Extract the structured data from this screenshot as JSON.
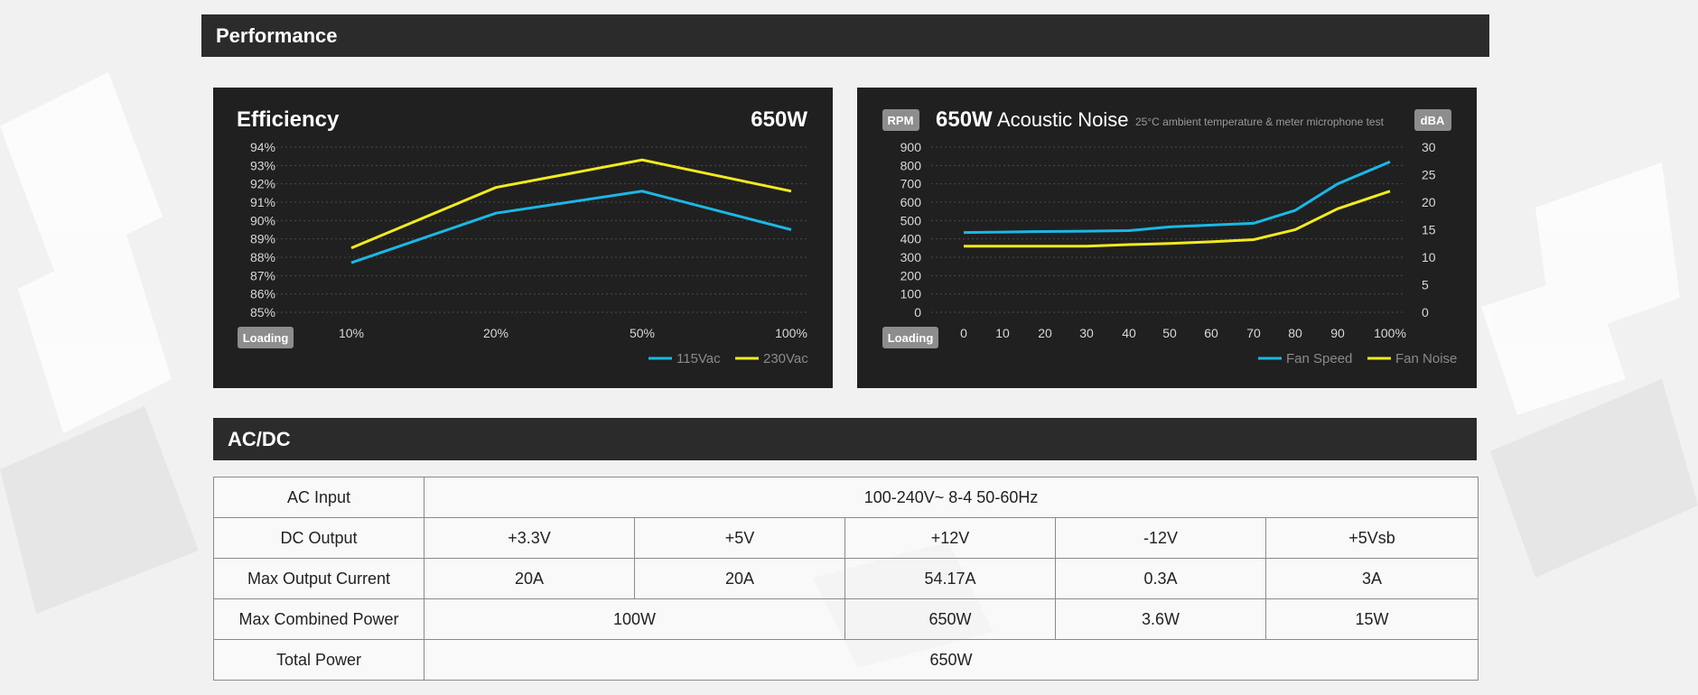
{
  "performance": {
    "title": "Performance",
    "efficiency_chart": {
      "title": "Efficiency",
      "wattage": "650W",
      "loading_label": "Loading"
    },
    "noise_chart": {
      "rpm_badge": "RPM",
      "wattage": "650W",
      "title": "Acoustic Noise",
      "subtitle": "25°C ambient temperature & meter microphone test",
      "dba_badge": "dBA",
      "loading_label": "Loading"
    }
  },
  "chart_data": [
    {
      "type": "line",
      "title": "Efficiency",
      "xlabel": "Loading",
      "ylabel": "",
      "categories": [
        "10%",
        "20%",
        "50%",
        "100%"
      ],
      "yticks": [
        "85%",
        "86%",
        "87%",
        "88%",
        "89%",
        "90%",
        "91%",
        "92%",
        "93%",
        "94%"
      ],
      "ylim": [
        85,
        94
      ],
      "grid": true,
      "legend_position": "bottom-right",
      "series": [
        {
          "name": "115Vac",
          "color": "#1ab8e6",
          "values": [
            87.7,
            90.4,
            91.6,
            89.5
          ]
        },
        {
          "name": "230Vac",
          "color": "#f2ea1f",
          "values": [
            88.5,
            91.8,
            93.3,
            91.6
          ]
        }
      ]
    },
    {
      "type": "line",
      "title": "Acoustic Noise",
      "xlabel": "Loading",
      "ylabel": "RPM",
      "y2label": "dBA",
      "categories": [
        "0",
        "10",
        "20",
        "30",
        "40",
        "50",
        "60",
        "70",
        "80",
        "90",
        "100%"
      ],
      "yticks": [
        "0",
        "100",
        "200",
        "300",
        "400",
        "500",
        "600",
        "700",
        "800",
        "900"
      ],
      "y2ticks": [
        "0",
        "5",
        "10",
        "15",
        "20",
        "25",
        "30"
      ],
      "ylim": [
        0,
        900
      ],
      "y2lim": [
        0,
        30
      ],
      "grid": true,
      "legend_position": "bottom-right",
      "series": [
        {
          "name": "Fan Speed",
          "axis": "left",
          "color": "#1ab8e6",
          "values": [
            435,
            437,
            440,
            442,
            445,
            465,
            475,
            485,
            555,
            700,
            820
          ]
        },
        {
          "name": "Fan Noise",
          "axis": "right",
          "color": "#f2ea1f",
          "values": [
            12,
            12,
            12,
            12,
            12.3,
            12.5,
            12.8,
            13.2,
            15,
            18.8,
            22
          ]
        }
      ]
    }
  ],
  "acdc": {
    "title": "AC/DC",
    "rows": [
      {
        "label": "AC Input",
        "cells": [
          {
            "text": "100-240V~  8-4  50-60Hz",
            "span": 5
          }
        ]
      },
      {
        "label": "DC Output",
        "cells": [
          {
            "text": "+3.3V",
            "span": 1
          },
          {
            "text": "+5V",
            "span": 1
          },
          {
            "text": "+12V",
            "span": 1
          },
          {
            "text": "-12V",
            "span": 1
          },
          {
            "text": "+5Vsb",
            "span": 1
          }
        ]
      },
      {
        "label": "Max Output Current",
        "cells": [
          {
            "text": "20A",
            "span": 1
          },
          {
            "text": "20A",
            "span": 1
          },
          {
            "text": "54.17A",
            "span": 1
          },
          {
            "text": "0.3A",
            "span": 1
          },
          {
            "text": "3A",
            "span": 1
          }
        ]
      },
      {
        "label": "Max Combined Power",
        "cells": [
          {
            "text": "100W",
            "span": 2
          },
          {
            "text": "650W",
            "span": 1
          },
          {
            "text": "3.6W",
            "span": 1
          },
          {
            "text": "15W",
            "span": 1
          }
        ]
      },
      {
        "label": "Total Power",
        "cells": [
          {
            "text": "650W",
            "span": 5
          }
        ]
      }
    ]
  }
}
